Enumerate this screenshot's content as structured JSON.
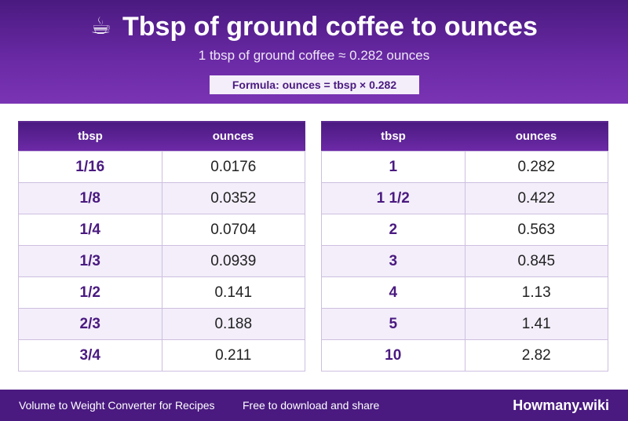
{
  "header": {
    "icon": "coffee-cup-icon",
    "icon_glyph": "☕",
    "title": "Tbsp of ground coffee to ounces",
    "subtitle": "1 tbsp of ground coffee ≈ 0.282 ounces",
    "formula": "Formula: ounces = tbsp × 0.282"
  },
  "tables": {
    "left": {
      "headers": [
        "tbsp",
        "ounces"
      ],
      "rows": [
        [
          "1/16",
          "0.0176"
        ],
        [
          "1/8",
          "0.0352"
        ],
        [
          "1/4",
          "0.0704"
        ],
        [
          "1/3",
          "0.0939"
        ],
        [
          "1/2",
          "0.141"
        ],
        [
          "2/3",
          "0.188"
        ],
        [
          "3/4",
          "0.211"
        ]
      ]
    },
    "right": {
      "headers": [
        "tbsp",
        "ounces"
      ],
      "rows": [
        [
          "1",
          "0.282"
        ],
        [
          "1 1/2",
          "0.422"
        ],
        [
          "2",
          "0.563"
        ],
        [
          "3",
          "0.845"
        ],
        [
          "4",
          "1.13"
        ],
        [
          "5",
          "1.41"
        ],
        [
          "10",
          "2.82"
        ]
      ]
    }
  },
  "footer": {
    "left_text": "Volume to Weight Converter for Recipes",
    "middle_text": "Free to download and share",
    "brand": "Howmany.wiki"
  },
  "colors": {
    "primary": "#4a1a80",
    "accent": "#6b2aa6",
    "row_alt": "#f3eefa"
  }
}
